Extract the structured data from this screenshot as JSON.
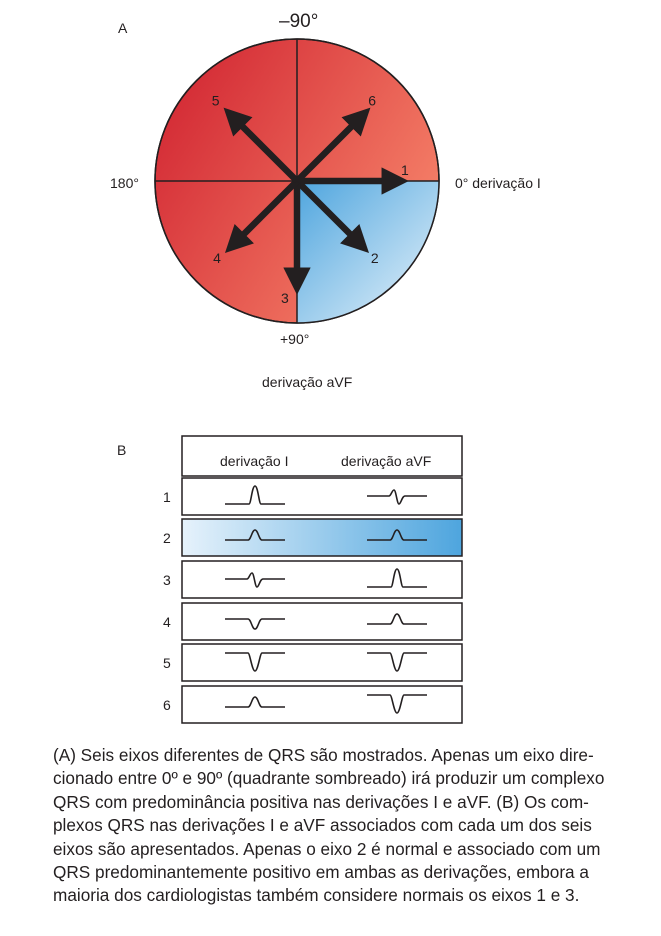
{
  "panel_a": {
    "label": "A",
    "angle_top": "–90°",
    "angle_left": "180°",
    "angle_right": "0° derivação I",
    "angle_bottom": "+90°",
    "lead_avf": "derivação aVF",
    "axes": [
      {
        "id": "1",
        "angle_deg": 0
      },
      {
        "id": "2",
        "angle_deg": 45
      },
      {
        "id": "3",
        "angle_deg": 90
      },
      {
        "id": "4",
        "angle_deg": 135
      },
      {
        "id": "5",
        "angle_deg": -135
      },
      {
        "id": "6",
        "angle_deg": -45
      }
    ],
    "colors": {
      "red_dark": "#d4202a",
      "red_light": "#f47a63",
      "blue_dark": "#4fa6de",
      "blue_light": "#e3f0fa",
      "arrow": "#231f20"
    }
  },
  "panel_b": {
    "label": "B",
    "col_lead_i": "derivação I",
    "col_lead_avf": "derivação aVF",
    "rows": [
      {
        "num": "1",
        "lead_i": "tall-positive",
        "lead_avf": "biphasic",
        "highlight": false
      },
      {
        "num": "2",
        "lead_i": "small-positive",
        "lead_avf": "small-positive",
        "highlight": true
      },
      {
        "num": "3",
        "lead_i": "biphasic",
        "lead_avf": "tall-positive",
        "highlight": false
      },
      {
        "num": "4",
        "lead_i": "small-negative",
        "lead_avf": "small-positive",
        "highlight": false
      },
      {
        "num": "5",
        "lead_i": "deep-negative",
        "lead_avf": "deep-negative",
        "highlight": false
      },
      {
        "num": "6",
        "lead_i": "small-positive",
        "lead_avf": "deep-negative",
        "highlight": false
      }
    ]
  },
  "caption": [
    "(A) Seis eixos diferentes de QRS são mostrados. Apenas um eixo dire-",
    "cionado entre 0º e 90º (quadrante sombreado) irá produzir um complexo",
    "QRS com predominância positiva nas derivações I e aVF. (B) Os com-",
    "plexos QRS nas derivações I e aVF associados com cada um dos seis",
    "eixos são apresentados. Apenas o eixo 2 é normal e associado com um",
    "QRS predominantemente positivo em ambas as derivações, embora a",
    "maioria dos cardiologistas também considere normais os eixos 1 e 3."
  ]
}
